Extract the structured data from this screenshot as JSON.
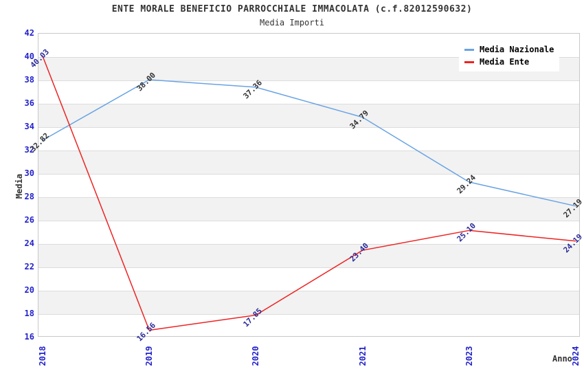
{
  "chart_data": {
    "type": "line",
    "x_type": "category",
    "title": "ENTE MORALE BENEFICIO PARROCCHIALE IMMACOLATA (c.f.82012590632)",
    "subtitle": "Media Importi",
    "xlabel": "Anno",
    "ylabel": "Media",
    "categories": [
      "2018",
      "2019",
      "2020",
      "2021",
      "2023",
      "2024"
    ],
    "series": [
      {
        "name": "Media Nazionale",
        "color": "#69a3e4",
        "label_color": "#333333",
        "values": [
          32.82,
          38.0,
          37.36,
          34.79,
          29.24,
          27.19
        ],
        "point_labels": [
          "32.82",
          "38.00",
          "37.36",
          "34.79",
          "29.24",
          "27.19"
        ]
      },
      {
        "name": "Media Ente",
        "color": "#ee2222",
        "label_color": "#2b2b99",
        "values": [
          40.03,
          16.56,
          17.85,
          23.4,
          25.1,
          24.19
        ],
        "point_labels": [
          "40.03",
          "16.56",
          "17.85",
          "23.40",
          "25.10",
          "24.19"
        ]
      }
    ],
    "ylim": [
      16,
      42
    ],
    "y_ticks": [
      16,
      18,
      20,
      22,
      24,
      26,
      28,
      30,
      32,
      34,
      36,
      38,
      40,
      42
    ],
    "grid": true,
    "band_fill": true,
    "legend_position": "top-right",
    "axis_tick_color": "#2222cc",
    "band_color": "#f2f2f2",
    "grid_color": "#dcdcdc",
    "plot_border_color": "#c8c8c8"
  }
}
